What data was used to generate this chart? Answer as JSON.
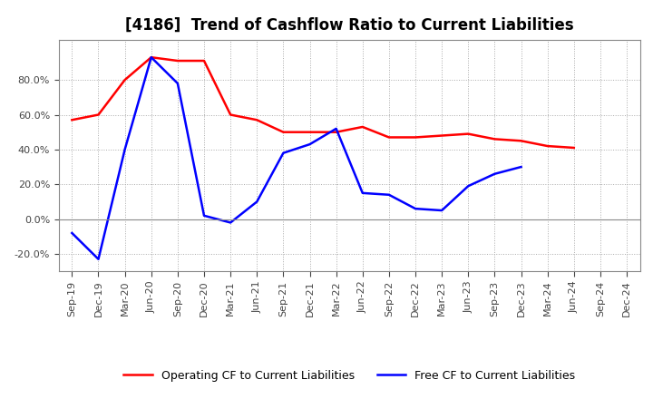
{
  "title": "[4186]  Trend of Cashflow Ratio to Current Liabilities",
  "x_labels": [
    "Sep-19",
    "Dec-19",
    "Mar-20",
    "Jun-20",
    "Sep-20",
    "Dec-20",
    "Mar-21",
    "Jun-21",
    "Sep-21",
    "Dec-21",
    "Mar-22",
    "Jun-22",
    "Sep-22",
    "Dec-22",
    "Mar-23",
    "Jun-23",
    "Sep-23",
    "Dec-23",
    "Mar-24",
    "Jun-24",
    "Sep-24",
    "Dec-24"
  ],
  "operating_cf": [
    57.0,
    60.0,
    80.0,
    93.0,
    91.0,
    91.0,
    60.0,
    57.0,
    50.0,
    50.0,
    50.0,
    53.0,
    47.0,
    47.0,
    48.0,
    49.0,
    46.0,
    45.0,
    42.0,
    41.0,
    null,
    null
  ],
  "free_cf": [
    -8.0,
    -23.0,
    40.0,
    93.0,
    78.0,
    2.0,
    -2.0,
    10.0,
    38.0,
    43.0,
    52.0,
    15.0,
    14.0,
    6.0,
    5.0,
    19.0,
    26.0,
    30.0,
    null,
    null,
    null,
    null
  ],
  "operating_color": "#ff0000",
  "free_color": "#0000ff",
  "ylim": [
    -30,
    103
  ],
  "yticks": [
    -20,
    0,
    20,
    40,
    60,
    80
  ],
  "background_color": "#ffffff",
  "grid_color": "#aaaaaa",
  "title_fontsize": 12,
  "tick_fontsize": 8,
  "legend_labels": [
    "Operating CF to Current Liabilities",
    "Free CF to Current Liabilities"
  ]
}
